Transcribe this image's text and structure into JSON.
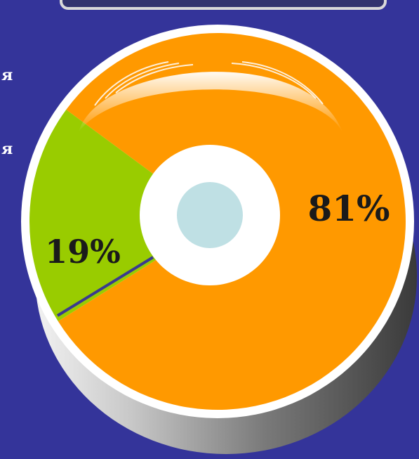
{
  "side_text": [
    "я",
    "я"
  ],
  "chart_data": {
    "type": "pie",
    "donut": true,
    "title": "",
    "slices": [
      {
        "label": "81%",
        "value": 81,
        "color": "#ff9900"
      },
      {
        "label": "19%",
        "value": 19,
        "color": "#99cc00"
      }
    ]
  },
  "colors": {
    "background": "#34349a",
    "rim": "#ffffff",
    "hole_ring": "#ffffff",
    "hole_center": "#bfe0e4",
    "separator": "#3a3a8f"
  }
}
